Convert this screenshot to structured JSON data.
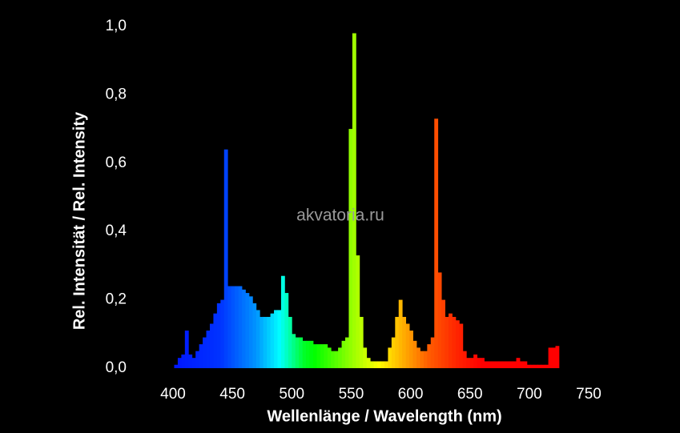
{
  "chart_data": {
    "type": "histogram",
    "xlabel": "Wellenlänge / Wavelength (nm)",
    "ylabel": "Rel. Intensität / Rel. Intensity",
    "annotation": "akvatoria.ru",
    "bins": [
      401,
      404,
      407,
      410,
      413,
      416,
      419,
      422,
      425,
      428,
      431,
      434,
      437,
      440,
      443,
      446,
      449,
      452,
      455,
      458,
      461,
      464,
      467,
      470,
      473,
      476,
      479,
      482,
      485,
      488,
      491,
      494,
      497,
      500,
      503,
      506,
      509,
      512,
      515,
      518,
      521,
      524,
      527,
      530,
      533,
      536,
      539,
      542,
      545,
      548,
      551,
      554,
      557,
      560,
      563,
      566,
      569,
      572,
      575,
      578,
      581,
      584,
      587,
      590,
      593,
      596,
      599,
      602,
      605,
      608,
      611,
      614,
      617,
      620,
      623,
      626,
      629,
      632,
      635,
      638,
      641,
      644,
      647,
      650,
      653,
      656,
      659,
      662,
      665,
      668,
      671,
      674,
      677,
      680,
      683,
      686,
      689,
      692,
      695,
      698,
      701,
      704,
      707,
      710,
      713,
      716,
      719,
      722,
      725,
      728
    ],
    "values": [
      0.01,
      0.03,
      0.04,
      0.11,
      0.04,
      0.03,
      0.05,
      0.07,
      0.09,
      0.11,
      0.13,
      0.16,
      0.19,
      0.2,
      0.64,
      0.24,
      0.24,
      0.24,
      0.24,
      0.23,
      0.22,
      0.21,
      0.19,
      0.17,
      0.15,
      0.15,
      0.15,
      0.16,
      0.17,
      0.17,
      0.27,
      0.22,
      0.15,
      0.1,
      0.09,
      0.09,
      0.08,
      0.08,
      0.08,
      0.07,
      0.07,
      0.07,
      0.07,
      0.06,
      0.05,
      0.05,
      0.06,
      0.08,
      0.09,
      0.7,
      0.98,
      0.33,
      0.15,
      0.06,
      0.03,
      0.02,
      0.02,
      0.02,
      0.02,
      0.02,
      0.06,
      0.09,
      0.15,
      0.2,
      0.15,
      0.13,
      0.11,
      0.08,
      0.06,
      0.05,
      0.05,
      0.07,
      0.09,
      0.73,
      0.28,
      0.2,
      0.15,
      0.16,
      0.15,
      0.14,
      0.13,
      0.05,
      0.03,
      0.03,
      0.04,
      0.03,
      0.03,
      0.02,
      0.02,
      0.02,
      0.02,
      0.02,
      0.02,
      0.02,
      0.02,
      0.02,
      0.03,
      0.02,
      0.02,
      0.01,
      0.01,
      0.01,
      0.01,
      0.01,
      0.01,
      0.06,
      0.06,
      0.065,
      0
    ],
    "xlim": [
      400,
      750
    ],
    "xticks": [
      400,
      450,
      500,
      550,
      600,
      650,
      700,
      750
    ],
    "ylim": [
      0,
      1
    ],
    "yticks": [
      {
        "value": 0,
        "label": "0,0"
      },
      {
        "value": 0.2,
        "label": "0,2"
      },
      {
        "value": 0.4,
        "label": "0,4"
      },
      {
        "value": 0.6,
        "label": "0,6"
      },
      {
        "value": 0.8,
        "label": "0,8"
      },
      {
        "value": 1,
        "label": "1,0"
      }
    ],
    "grid": false
  }
}
